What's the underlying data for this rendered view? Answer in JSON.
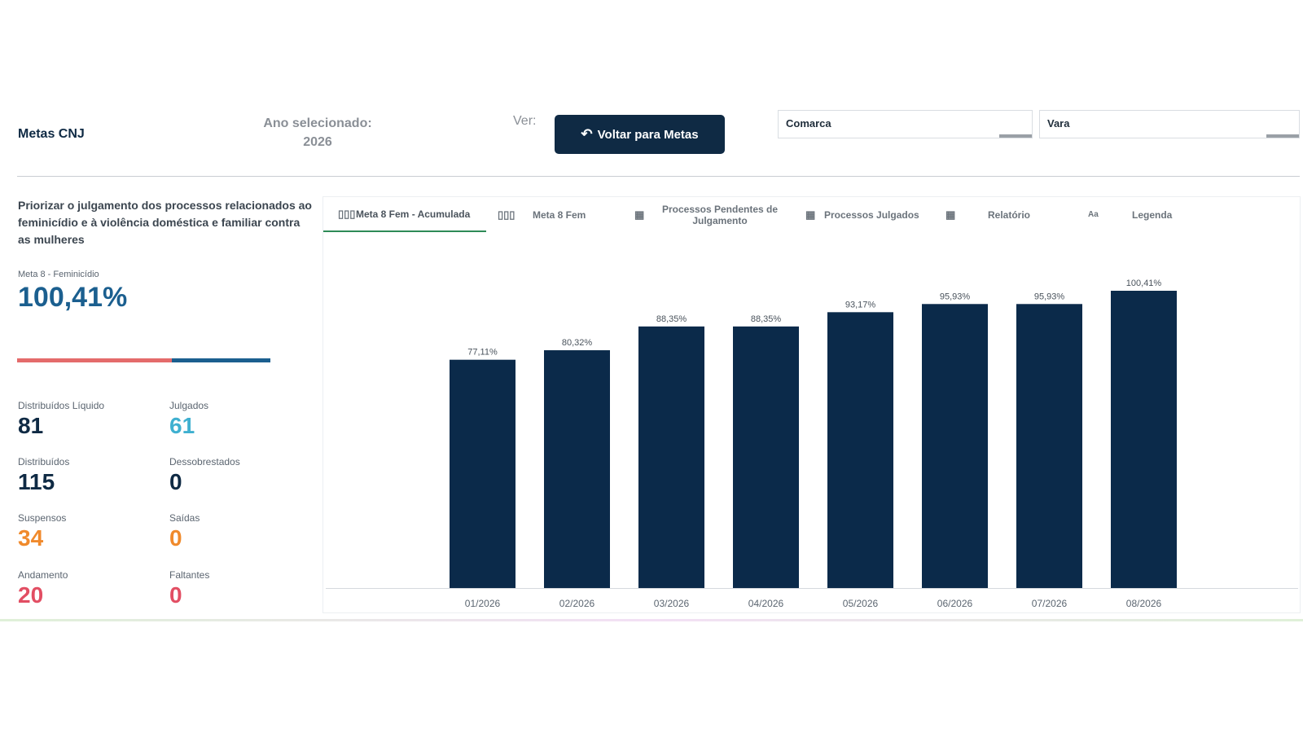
{
  "header": {
    "app_title": "Metas CNJ",
    "year_label": "Ano selecionado:",
    "year_value": "2026",
    "ver_label": "Ver:",
    "back_button_label": "Voltar para Metas",
    "back_button_icon": "undo-arrow-icon",
    "filters": {
      "comarca": "Comarca",
      "vara": "Vara"
    }
  },
  "goal": {
    "description": "Priorizar o julgamento dos processos relacionados ao feminicídio e à violência doméstica e familiar contra as mulheres",
    "meta_label": "Meta 8 - Feminicídio",
    "meta_value": "100,41%",
    "progress": {
      "pink_fraction": 0.6,
      "blue_fraction": 0.38
    }
  },
  "stats": [
    {
      "label": "Distribuídos Líquido",
      "value": "81",
      "color": "#0f2a44"
    },
    {
      "label": "Julgados",
      "value": "61",
      "color": "#3fb0d0"
    },
    {
      "label": "Distribuídos",
      "value": "115",
      "color": "#0f2a44"
    },
    {
      "label": "Dessobrestados",
      "value": "0",
      "color": "#0f2a44"
    },
    {
      "label": "Suspensos",
      "value": "34",
      "color": "#f08a2c"
    },
    {
      "label": "Saídas",
      "value": "0",
      "color": "#f08a2c"
    },
    {
      "label": "Andamento",
      "value": "20",
      "color": "#e24e63"
    },
    {
      "label": "Faltantes",
      "value": "0",
      "color": "#e24e63"
    }
  ],
  "tabs": [
    {
      "label": "Meta 8 Fem - Acumulada",
      "icon": "bar-chart-icon",
      "icon_glyph": "▯▯▯",
      "active": true
    },
    {
      "label": "Meta 8 Fem",
      "icon": "bar-chart-icon",
      "icon_glyph": "▯▯▯",
      "active": false
    },
    {
      "label": "Processos Pendentes de Julgamento",
      "icon": "table-icon",
      "icon_glyph": "▦",
      "active": false
    },
    {
      "label": "Processos Julgados",
      "icon": "table-icon",
      "icon_glyph": "▦",
      "active": false
    },
    {
      "label": "Relatório",
      "icon": "table-icon",
      "icon_glyph": "▦",
      "active": false
    },
    {
      "label": "Legenda",
      "icon": "text-format-icon",
      "icon_glyph": "Aa",
      "active": false
    }
  ],
  "chart_data": {
    "type": "bar",
    "categories": [
      "01/2026",
      "02/2026",
      "03/2026",
      "04/2026",
      "05/2026",
      "06/2026",
      "07/2026",
      "08/2026"
    ],
    "values": [
      77.11,
      80.32,
      88.35,
      88.35,
      93.17,
      95.93,
      95.93,
      100.41
    ],
    "data_labels": [
      "77,11%",
      "80,32%",
      "88,35%",
      "88,35%",
      "93,17%",
      "95,93%",
      "95,93%",
      "100,41%"
    ],
    "title": "",
    "xlabel": "",
    "ylabel": "",
    "ylim": [
      0,
      100.41
    ],
    "bar_color": "#0b2a4a",
    "grid": false
  }
}
